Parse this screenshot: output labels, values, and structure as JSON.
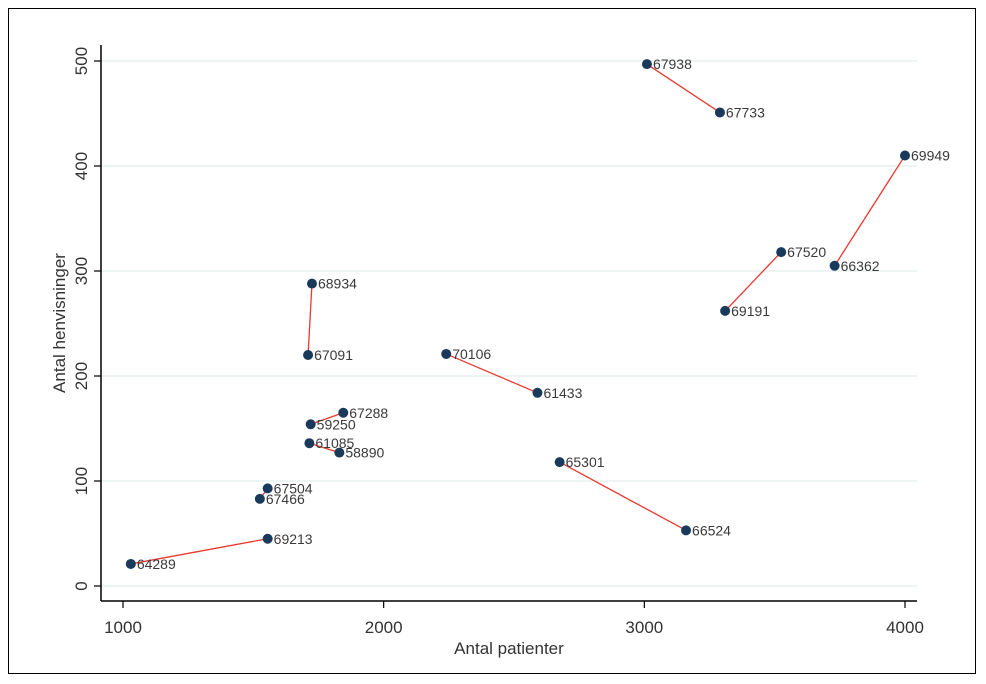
{
  "chart_data": {
    "type": "scatter",
    "xlabel": "Antal patienter",
    "ylabel": "Antal henvisninger",
    "xlim": [
      1000,
      4000
    ],
    "ylim": [
      0,
      500
    ],
    "xticks": [
      1000,
      2000,
      3000,
      4000
    ],
    "yticks": [
      0,
      100,
      200,
      300,
      400,
      500
    ],
    "grid": "horizontal",
    "colors": {
      "point": "#1a3a5c",
      "line": "#e8392f",
      "grid": "#e4ecee",
      "axis": "#000000"
    },
    "points": [
      {
        "label": "67938",
        "x": 3010,
        "y": 497
      },
      {
        "label": "67733",
        "x": 3290,
        "y": 451
      },
      {
        "label": "69949",
        "x": 4000,
        "y": 410
      },
      {
        "label": "67520",
        "x": 3525,
        "y": 318
      },
      {
        "label": "66362",
        "x": 3730,
        "y": 305
      },
      {
        "label": "69191",
        "x": 3310,
        "y": 262
      },
      {
        "label": "68934",
        "x": 1725,
        "y": 288
      },
      {
        "label": "67091",
        "x": 1710,
        "y": 220
      },
      {
        "label": "70106",
        "x": 2240,
        "y": 221
      },
      {
        "label": "61433",
        "x": 2590,
        "y": 184
      },
      {
        "label": "67288",
        "x": 1845,
        "y": 165
      },
      {
        "label": "59250",
        "x": 1720,
        "y": 154
      },
      {
        "label": "61085",
        "x": 1715,
        "y": 136
      },
      {
        "label": "58890",
        "x": 1830,
        "y": 127
      },
      {
        "label": "65301",
        "x": 2675,
        "y": 118
      },
      {
        "label": "67504",
        "x": 1555,
        "y": 93
      },
      {
        "label": "67466",
        "x": 1525,
        "y": 83
      },
      {
        "label": "66524",
        "x": 3160,
        "y": 53
      },
      {
        "label": "69213",
        "x": 1555,
        "y": 45
      },
      {
        "label": "64289",
        "x": 1030,
        "y": 21
      }
    ],
    "connections": [
      [
        "67938",
        "67733"
      ],
      [
        "69949",
        "66362"
      ],
      [
        "67520",
        "69191"
      ],
      [
        "68934",
        "67091"
      ],
      [
        "70106",
        "61433"
      ],
      [
        "67288",
        "59250"
      ],
      [
        "61085",
        "58890"
      ],
      [
        "65301",
        "66524"
      ],
      [
        "67504",
        "67466"
      ],
      [
        "69213",
        "64289"
      ]
    ]
  }
}
